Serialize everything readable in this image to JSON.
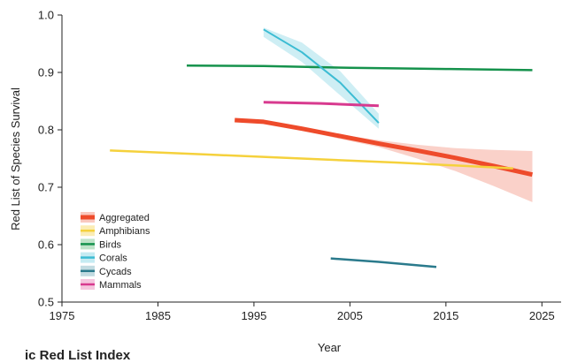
{
  "chart_data": {
    "type": "line",
    "xlabel": "Year",
    "ylabel": "Red List of Species Survival",
    "xlim": [
      1975,
      2027
    ],
    "ylim": [
      0.5,
      1.0
    ],
    "xticks": [
      "1975",
      "1985",
      "1995",
      "2005",
      "2015",
      "2025"
    ],
    "yticks": [
      "0.5",
      "0.6",
      "0.7",
      "0.8",
      "0.9",
      "1.0"
    ],
    "legend_position": "lower-left",
    "series": [
      {
        "name": "Aggregated",
        "color": "#ee4b2b",
        "band_color": "#f9c9bf",
        "width": 5,
        "x": [
          1993,
          1996,
          2000,
          2004,
          2008,
          2012,
          2016,
          2020,
          2024
        ],
        "y": [
          0.817,
          0.814,
          0.802,
          0.789,
          0.776,
          0.764,
          0.751,
          0.737,
          0.722
        ],
        "lower": [
          0.816,
          0.812,
          0.799,
          0.784,
          0.77,
          0.75,
          0.728,
          0.702,
          0.674
        ],
        "upper": [
          0.818,
          0.816,
          0.805,
          0.792,
          0.782,
          0.774,
          0.768,
          0.765,
          0.763
        ]
      },
      {
        "name": "Amphibians",
        "color": "#f5d13c",
        "band_color": "#fbedb5",
        "width": 2.5,
        "x": [
          1980,
          1990,
          2000,
          2010,
          2022
        ],
        "y": [
          0.764,
          0.757,
          0.75,
          0.743,
          0.733
        ]
      },
      {
        "name": "Birds",
        "color": "#15924c",
        "band_color": "#bfe3c9",
        "width": 2.5,
        "x": [
          1988,
          1996,
          2005,
          2015,
          2024
        ],
        "y": [
          0.912,
          0.911,
          0.908,
          0.906,
          0.904
        ]
      },
      {
        "name": "Corals",
        "color": "#3cbcd3",
        "band_color": "#c5ebf2",
        "width": 2,
        "x": [
          1996,
          2000,
          2004,
          2008
        ],
        "y": [
          0.975,
          0.935,
          0.882,
          0.812
        ],
        "lower": [
          0.962,
          0.918,
          0.86,
          0.802
        ],
        "upper": [
          0.978,
          0.952,
          0.902,
          0.828
        ]
      },
      {
        "name": "Cycads",
        "color": "#2a7a8c",
        "band_color": "#c2dbe1",
        "width": 2.5,
        "x": [
          2003,
          2008,
          2014
        ],
        "y": [
          0.576,
          0.57,
          0.561
        ]
      },
      {
        "name": "Mammals",
        "color": "#d83a8f",
        "band_color": "#f5c5de",
        "width": 3,
        "x": [
          1996,
          2002,
          2008
        ],
        "y": [
          0.848,
          0.846,
          0.842
        ]
      }
    ]
  },
  "partial_text": "ic Red List Index"
}
